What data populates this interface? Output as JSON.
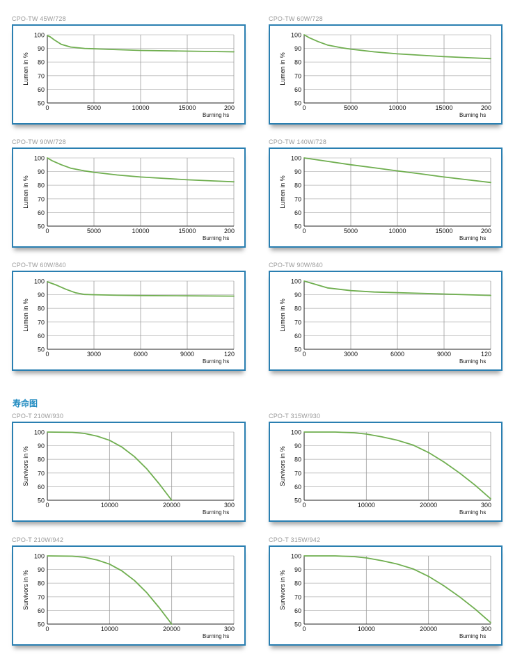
{
  "section_title": "寿命图",
  "chart_data": [
    {
      "type": "line",
      "title": "CPO-TW 45W/728",
      "ylabel": "Lumen in %",
      "xlabel": "Burning hs",
      "xticks": [
        "0",
        "5000",
        "10000",
        "15000",
        "200"
      ],
      "yticks": [
        "50",
        "60",
        "70",
        "80",
        "90",
        "100"
      ],
      "xlim": [
        0,
        20000
      ],
      "ylim": [
        50,
        100
      ],
      "grid": true,
      "color": "#6fae4f",
      "series": [
        {
          "x": [
            0,
            300,
            800,
            1500,
            2500,
            4000,
            6000,
            10000,
            15000,
            20000
          ],
          "y": [
            99.5,
            98.5,
            96,
            93,
            91,
            90,
            89.5,
            88.5,
            88,
            87.5
          ]
        }
      ]
    },
    {
      "type": "line",
      "title": "CPO-TW 60W/728",
      "ylabel": "Lumen in %",
      "xlabel": "Burning hs",
      "xticks": [
        "0",
        "5000",
        "10000",
        "15000",
        "200"
      ],
      "yticks": [
        "50",
        "60",
        "70",
        "80",
        "90",
        "100"
      ],
      "xlim": [
        0,
        20000
      ],
      "ylim": [
        50,
        100
      ],
      "grid": true,
      "color": "#6fae4f",
      "series": [
        {
          "x": [
            0,
            500,
            1500,
            2500,
            4000,
            5000,
            7500,
            10000,
            12500,
            15000,
            17500,
            20000
          ],
          "y": [
            100,
            98,
            95,
            92.5,
            90.5,
            89.5,
            87.5,
            86,
            85,
            84,
            83.2,
            82.5
          ]
        }
      ]
    },
    {
      "type": "line",
      "title": "CPO-TW 90W/728",
      "ylabel": "Lumen in %",
      "xlabel": "Burning hs",
      "xticks": [
        "0",
        "5000",
        "10000",
        "15000",
        "200"
      ],
      "yticks": [
        "50",
        "60",
        "70",
        "80",
        "90",
        "100"
      ],
      "xlim": [
        0,
        20000
      ],
      "ylim": [
        50,
        100
      ],
      "grid": true,
      "color": "#6fae4f",
      "series": [
        {
          "x": [
            0,
            500,
            1500,
            2500,
            4000,
            5000,
            7500,
            10000,
            12500,
            15000,
            17500,
            20000
          ],
          "y": [
            100,
            98,
            95,
            92.5,
            90.5,
            89.5,
            87.5,
            86,
            85,
            84,
            83.2,
            82.5
          ]
        }
      ]
    },
    {
      "type": "line",
      "title": "CPO-TW 140W/728",
      "ylabel": "Lumen in %",
      "xlabel": "Burning hs",
      "xticks": [
        "0",
        "5000",
        "10000",
        "15000",
        "200"
      ],
      "yticks": [
        "50",
        "60",
        "70",
        "80",
        "90",
        "100"
      ],
      "xlim": [
        0,
        20000
      ],
      "ylim": [
        50,
        100
      ],
      "grid": true,
      "color": "#6fae4f",
      "series": [
        {
          "x": [
            0,
            2500,
            5000,
            7500,
            10000,
            12500,
            15000,
            17500,
            20000
          ],
          "y": [
            100,
            97.5,
            95,
            92.8,
            90.5,
            88.3,
            86,
            84,
            82
          ]
        }
      ]
    },
    {
      "type": "line",
      "title": "CPO-TW 60W/840",
      "ylabel": "Lumen in %",
      "xlabel": "Burning hs",
      "xticks": [
        "0",
        "3000",
        "6000",
        "9000",
        "120"
      ],
      "yticks": [
        "50",
        "60",
        "70",
        "80",
        "90",
        "100"
      ],
      "xlim": [
        0,
        12000
      ],
      "ylim": [
        50,
        100
      ],
      "grid": true,
      "color": "#6fae4f",
      "series": [
        {
          "x": [
            0,
            600,
            1200,
            1800,
            2400,
            3000,
            4500,
            6000,
            9000,
            12000
          ],
          "y": [
            99.5,
            97,
            94,
            91.5,
            90.2,
            90,
            89.6,
            89.4,
            89.2,
            89
          ]
        }
      ]
    },
    {
      "type": "line",
      "title": "CPO-TW 90W/840",
      "ylabel": "Lumen in %",
      "xlabel": "Burning hs",
      "xticks": [
        "0",
        "3000",
        "6000",
        "9000",
        "120"
      ],
      "yticks": [
        "50",
        "60",
        "70",
        "80",
        "90",
        "100"
      ],
      "xlim": [
        0,
        12000
      ],
      "ylim": [
        50,
        100
      ],
      "grid": true,
      "color": "#6fae4f",
      "series": [
        {
          "x": [
            0,
            600,
            1500,
            3000,
            4500,
            6000,
            9000,
            12000
          ],
          "y": [
            100,
            98,
            95,
            93,
            92,
            91.5,
            90.5,
            89.5
          ]
        }
      ]
    },
    {
      "type": "line",
      "title": "CPO-T 210W/930",
      "ylabel": "Survivors in %",
      "xlabel": "Burning hs",
      "xticks": [
        "0",
        "10000",
        "20000",
        "300"
      ],
      "yticks": [
        "50",
        "60",
        "70",
        "80",
        "90",
        "100"
      ],
      "xlim": [
        0,
        30000
      ],
      "ylim": [
        50,
        100
      ],
      "grid": true,
      "color": "#6fae4f",
      "series": [
        {
          "x": [
            0,
            4000,
            6000,
            8000,
            10000,
            12000,
            14000,
            16000,
            18000,
            20000
          ],
          "y": [
            100,
            99.8,
            99,
            97,
            94,
            89,
            82,
            73,
            62,
            50
          ]
        }
      ]
    },
    {
      "type": "line",
      "title": "CPO-T 315W/930",
      "ylabel": "Survivors in %",
      "xlabel": "Burning hs",
      "xticks": [
        "0",
        "10000",
        "20000",
        "300"
      ],
      "yticks": [
        "50",
        "60",
        "70",
        "80",
        "90",
        "100"
      ],
      "xlim": [
        0,
        30000
      ],
      "ylim": [
        50,
        100
      ],
      "grid": true,
      "color": "#6fae4f",
      "series": [
        {
          "x": [
            0,
            5000,
            8000,
            10000,
            12500,
            15000,
            17500,
            20000,
            22500,
            25000,
            27500,
            30000
          ],
          "y": [
            100,
            100,
            99.5,
            98.5,
            96.5,
            94,
            90.5,
            85,
            78,
            70,
            61,
            51
          ]
        }
      ]
    },
    {
      "type": "line",
      "title": "CPO-T 210W/942",
      "ylabel": "Survivors in %",
      "xlabel": "Burning hs",
      "xticks": [
        "0",
        "10000",
        "20000",
        "300"
      ],
      "yticks": [
        "50",
        "60",
        "70",
        "80",
        "90",
        "100"
      ],
      "xlim": [
        0,
        30000
      ],
      "ylim": [
        50,
        100
      ],
      "grid": true,
      "color": "#6fae4f",
      "series": [
        {
          "x": [
            0,
            4000,
            6000,
            8000,
            10000,
            12000,
            14000,
            16000,
            18000,
            20000
          ],
          "y": [
            100,
            99.8,
            99,
            97,
            94,
            89,
            82,
            73,
            62,
            50
          ]
        }
      ]
    },
    {
      "type": "line",
      "title": "CPO-T 315W/942",
      "ylabel": "Survivors in %",
      "xlabel": "Burning hs",
      "xticks": [
        "0",
        "10000",
        "20000",
        "300"
      ],
      "yticks": [
        "50",
        "60",
        "70",
        "80",
        "90",
        "100"
      ],
      "xlim": [
        0,
        30000
      ],
      "ylim": [
        50,
        100
      ],
      "grid": true,
      "color": "#6fae4f",
      "series": [
        {
          "x": [
            0,
            5000,
            8000,
            10000,
            12500,
            15000,
            17500,
            20000,
            22500,
            25000,
            27500,
            30000
          ],
          "y": [
            100,
            100,
            99.5,
            98.5,
            96.5,
            94,
            90.5,
            85,
            78,
            70,
            61,
            51
          ]
        }
      ]
    }
  ]
}
